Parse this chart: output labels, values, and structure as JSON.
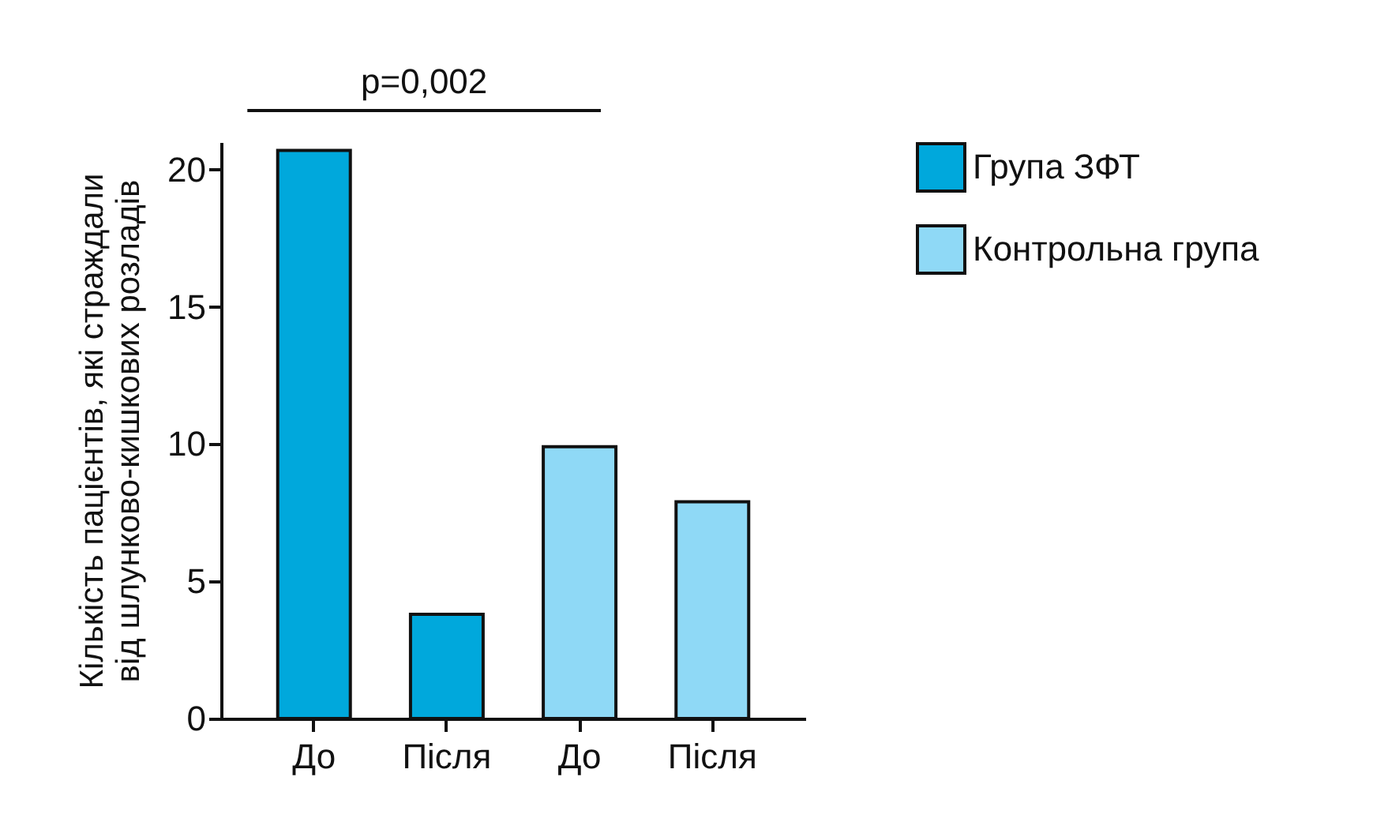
{
  "chart_data": {
    "type": "bar",
    "categories": [
      "До",
      "Після",
      "До",
      "Після"
    ],
    "series": [
      {
        "name": "Група ЗФТ",
        "color": "#00a8dc",
        "values": [
          20.7,
          3.8,
          null,
          null
        ]
      },
      {
        "name": "Контрольна група",
        "color": "#8fd9f6",
        "values": [
          null,
          null,
          9.9,
          7.9
        ]
      }
    ],
    "ylabel": "Кількість пацієнтів, які страждали\nвід шлунково-кишкових розладів",
    "ylim": [
      0,
      21
    ],
    "yticks": [
      0,
      5,
      10,
      15,
      20
    ],
    "annotations": [
      "p=0,002"
    ],
    "legend": "top right",
    "grid": false
  }
}
